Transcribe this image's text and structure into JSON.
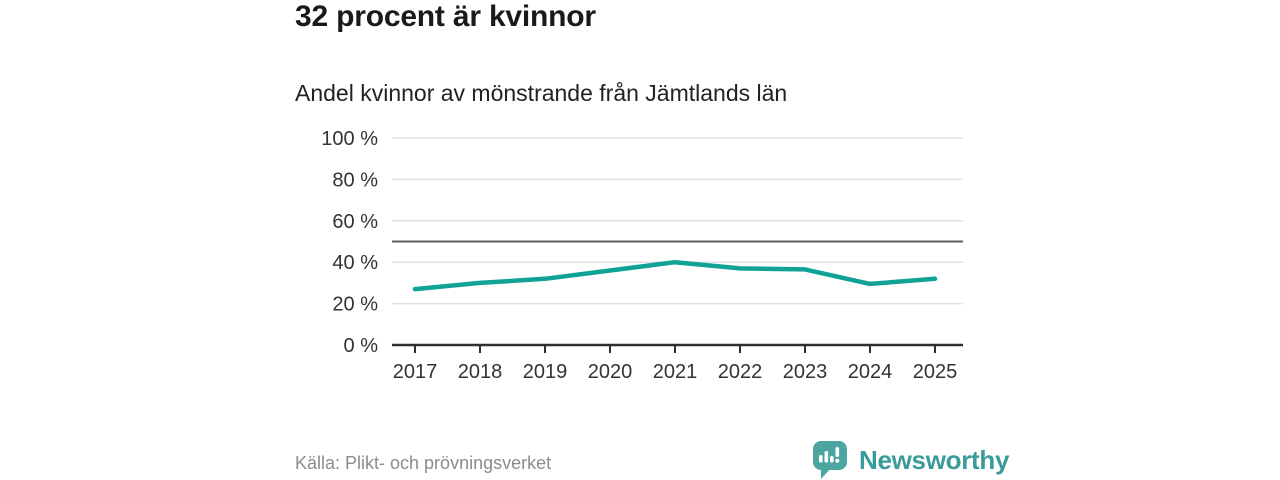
{
  "header": {
    "title": "32 procent är kvinnor",
    "subtitle": "Andel kvinnor av mönstrande från Jämtlands län"
  },
  "chart_data": {
    "type": "line",
    "title": "32 procent är kvinnor",
    "subtitle": "Andel kvinnor av mönstrande från Jämtlands län",
    "x": [
      "2017",
      "2018",
      "2019",
      "2020",
      "2021",
      "2022",
      "2023",
      "2024",
      "2025"
    ],
    "series": [
      {
        "name": "Andel kvinnor av mönstrande",
        "values": [
          27,
          30,
          32,
          36,
          40,
          37,
          36.5,
          29.5,
          32
        ]
      }
    ],
    "ylim": [
      0,
      100
    ],
    "yticks": [
      0,
      20,
      40,
      60,
      80,
      100
    ],
    "ytick_labels": [
      "0 %",
      "20 %",
      "40 %",
      "60 %",
      "80 %",
      "100 %"
    ],
    "reference_line": 50,
    "grid": true,
    "legend": "none",
    "xlabel": "",
    "ylabel": ""
  },
  "footer": {
    "source": "Källa: Plikt- och prövningsverket",
    "brand": "Newsworthy"
  },
  "colors": {
    "line": "#11a296",
    "grid": "#e0e0e0",
    "axis": "#2e2e2e",
    "reference": "#5e5e5e",
    "tick_label": "#333333",
    "title": "#1a1a1a",
    "source": "#8c8c8c",
    "brand_text": "#3a9b9a",
    "brand_bubble": "#4ba5a1"
  }
}
